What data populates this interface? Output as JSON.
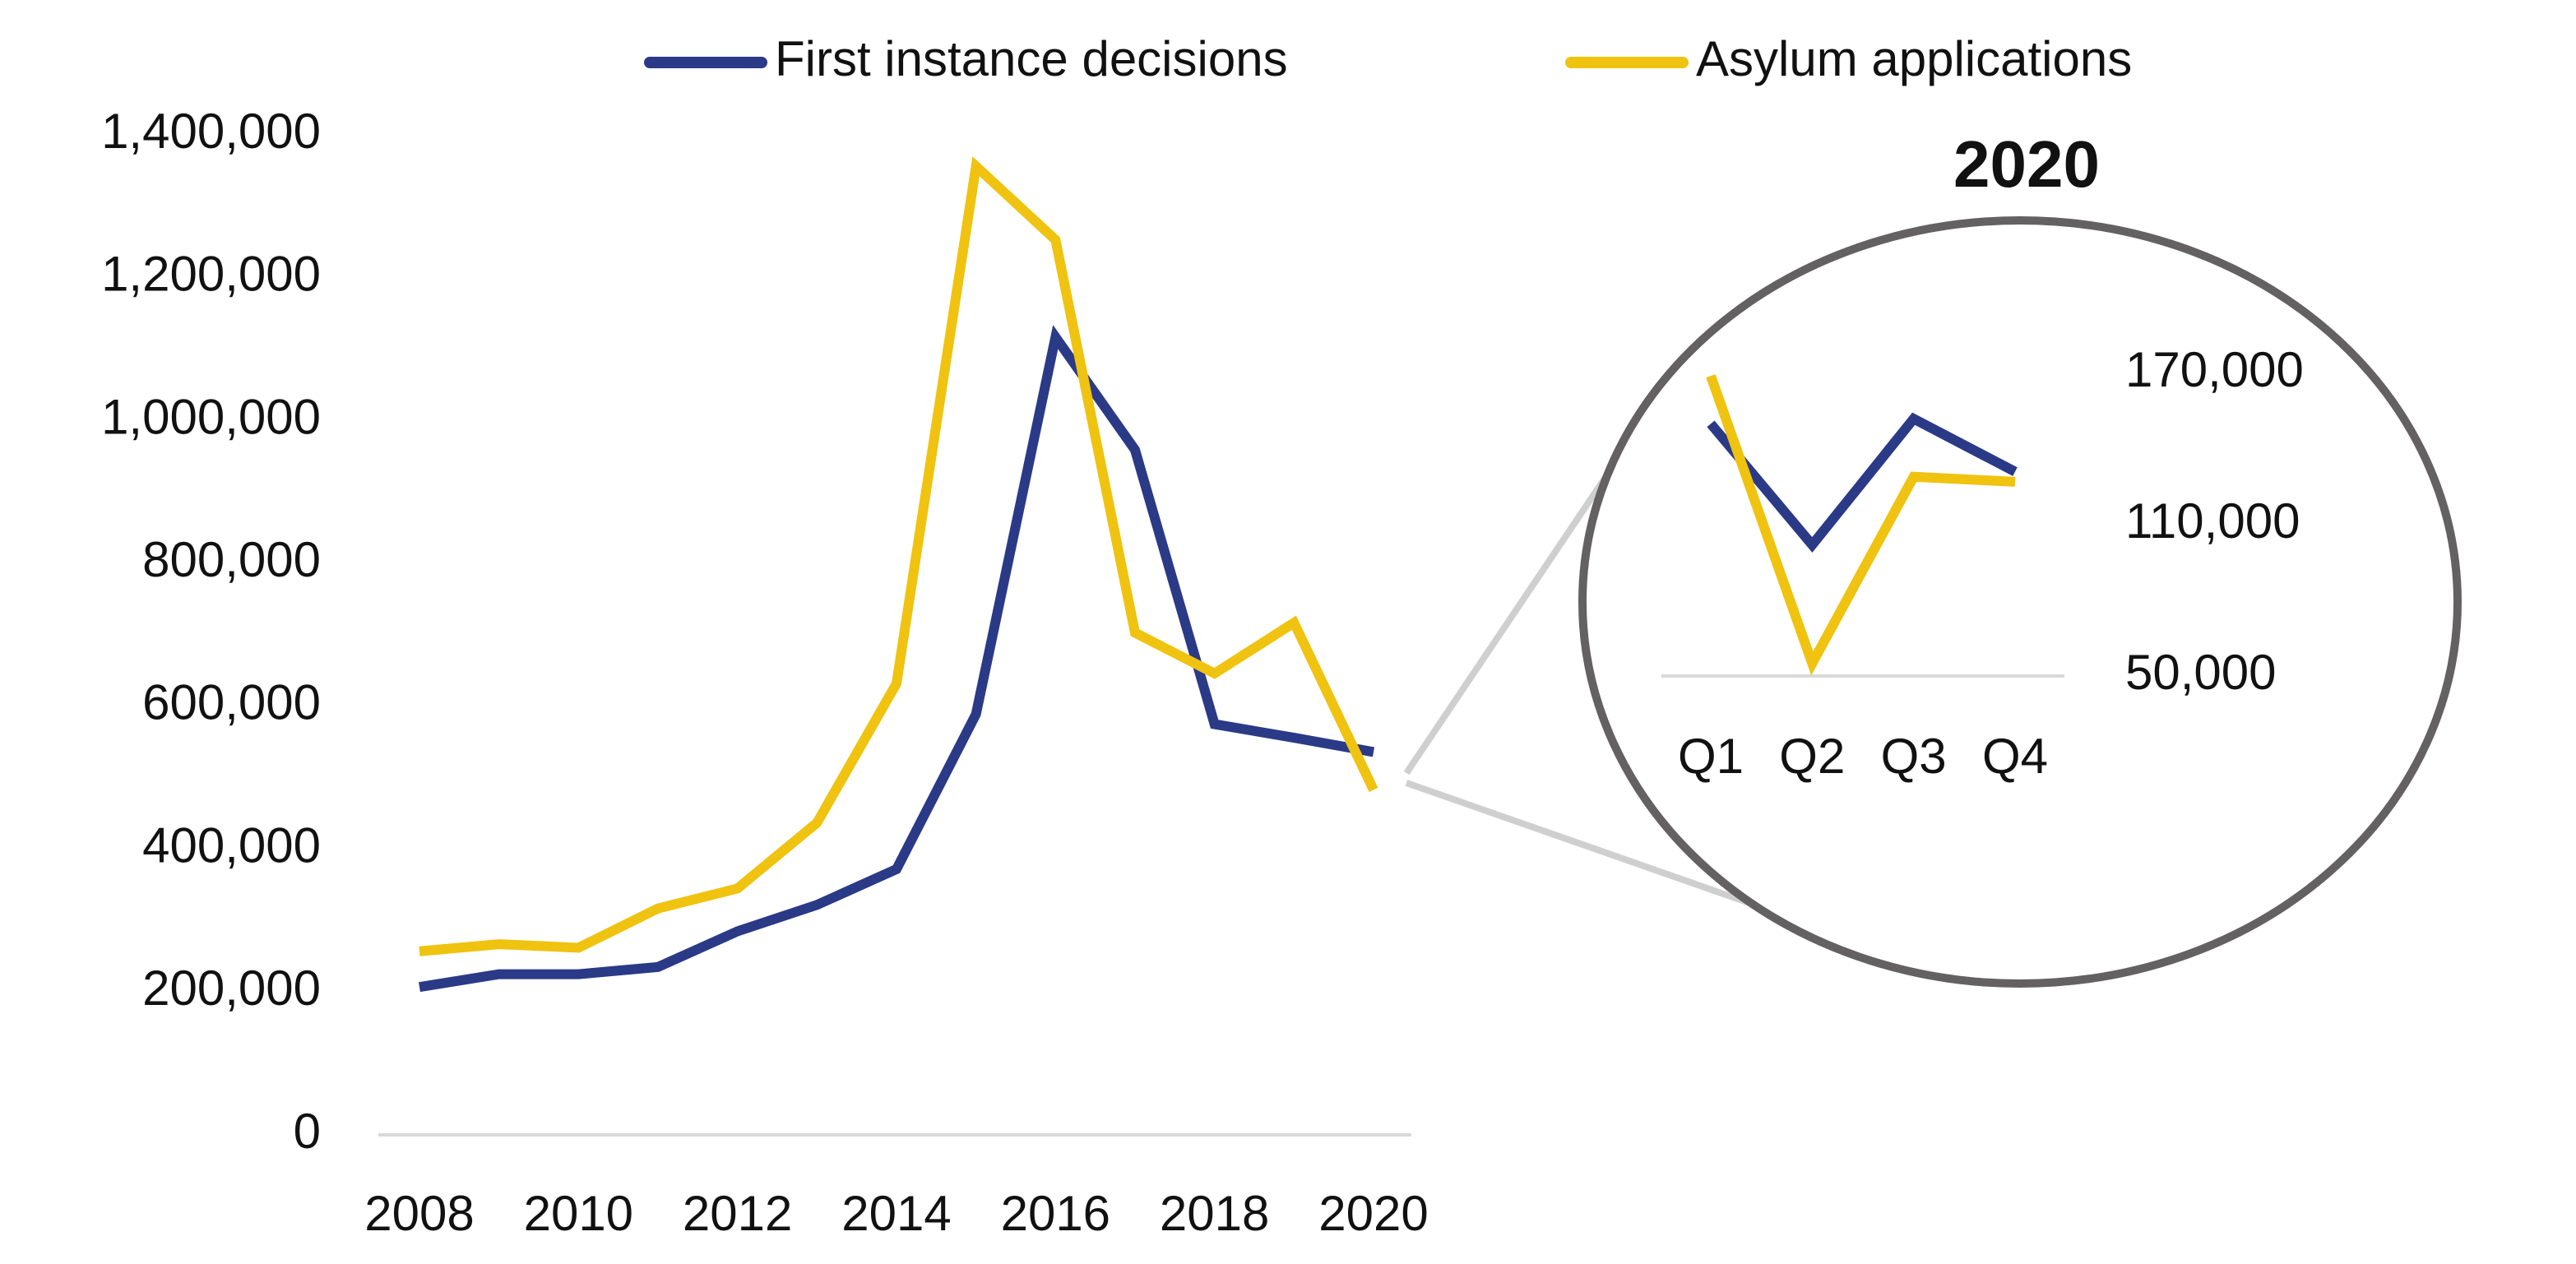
{
  "chart_data": [
    {
      "type": "line",
      "x": [
        2008,
        2009,
        2010,
        2011,
        2012,
        2013,
        2014,
        2015,
        2016,
        2017,
        2018,
        2019,
        2020
      ],
      "xlim": [
        2008,
        2020
      ],
      "xticks": [
        2008,
        2010,
        2012,
        2014,
        2016,
        2018,
        2020
      ],
      "ylim": [
        0,
        1400000
      ],
      "yticks": [
        0,
        {
          "value": 200000,
          "label": "200,000"
        },
        {
          "value": 400000,
          "label": "400,000"
        },
        {
          "value": 600000,
          "label": "600,000"
        },
        {
          "value": 800000,
          "label": "800,000"
        },
        {
          "value": 1000000,
          "label": "1,000,000"
        },
        {
          "value": 1200000,
          "label": "1,200,000"
        },
        {
          "value": 1400000,
          "label": "1,400,000"
        }
      ],
      "grid": false,
      "legend": "top",
      "series": [
        {
          "name": "First instance decisions",
          "color": "#2b3a86",
          "values": [
            207000,
            225000,
            225000,
            235000,
            285000,
            322000,
            372000,
            589000,
            1117000,
            959000,
            575000,
            556000,
            536000
          ]
        },
        {
          "name": "Asylum applications",
          "color": "#efc30f",
          "values": [
            257000,
            267000,
            262000,
            317000,
            345000,
            437000,
            632000,
            1356000,
            1253000,
            703000,
            646000,
            717000,
            483000
          ]
        }
      ]
    },
    {
      "type": "line",
      "title": "2020",
      "categories": [
        "Q1",
        "Q2",
        "Q3",
        "Q4"
      ],
      "ylim": [
        50000,
        170000
      ],
      "yticks": [
        {
          "value": 50000,
          "label": "50,000"
        },
        {
          "value": 110000,
          "label": "110,000"
        },
        {
          "value": 170000,
          "label": "170,000"
        }
      ],
      "grid": false,
      "series": [
        {
          "color": "#2b3a86",
          "values": [
            150000,
            102000,
            152000,
            131000
          ]
        },
        {
          "color": "#efc30f",
          "values": [
            169000,
            55000,
            129000,
            127000
          ]
        }
      ]
    }
  ]
}
